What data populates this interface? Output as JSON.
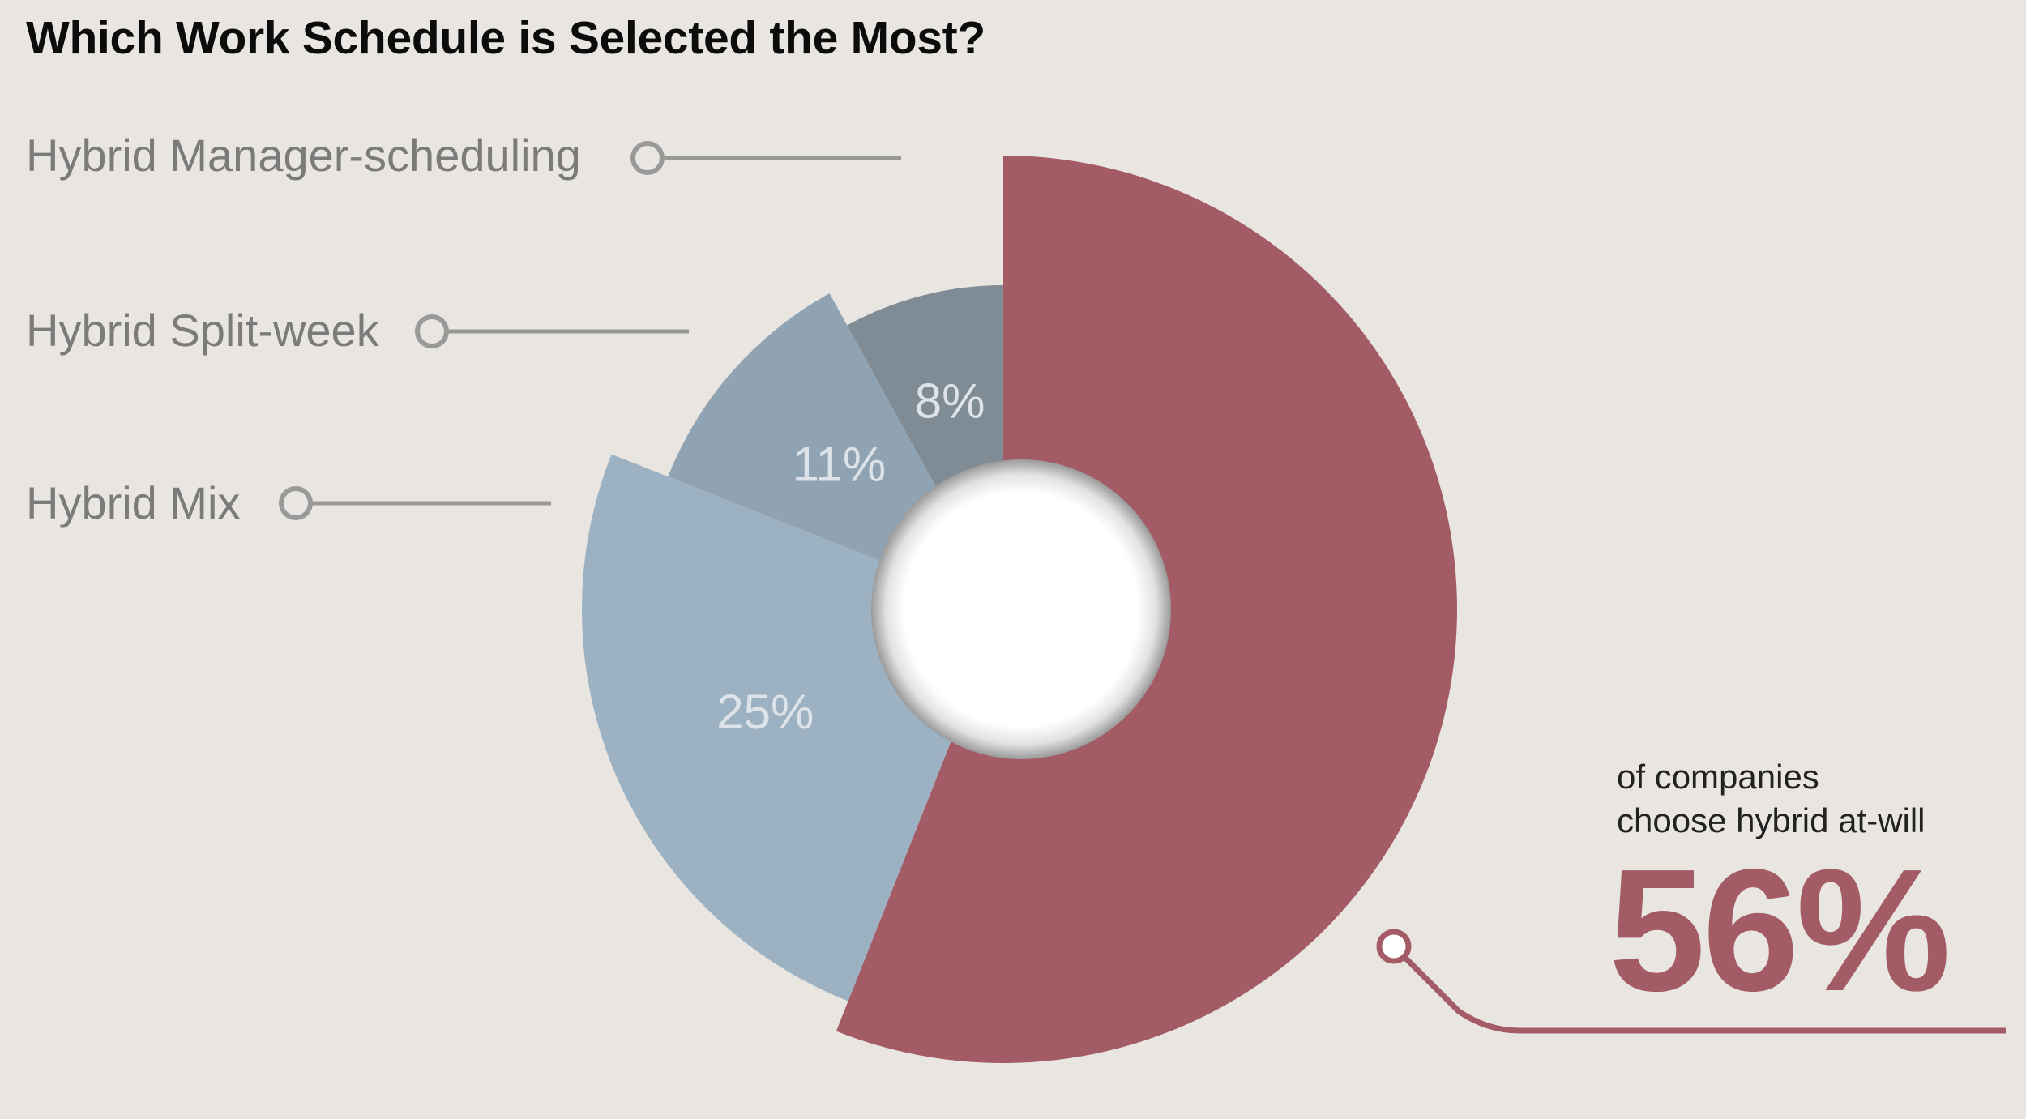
{
  "title": "Which Work Schedule is Selected the Most?",
  "colors": {
    "background": "#e9e6e1",
    "at_will": "#a35c66",
    "mix": "#9cb2c3",
    "split_week": "#8fa3b2",
    "manager_scheduling": "#7f8b95",
    "legend_line": "#999999"
  },
  "legend": [
    {
      "label": "Hybrid Manager-scheduling"
    },
    {
      "label": "Hybrid Split-week"
    },
    {
      "label": "Hybrid Mix"
    }
  ],
  "callout": {
    "line1": "of companies",
    "line2": "choose hybrid at-will",
    "value": "56%"
  },
  "chart_data": {
    "type": "pie",
    "title": "Which Work Schedule is Selected the Most?",
    "donut": true,
    "slices": [
      {
        "name": "Hybrid at-will",
        "value": 56,
        "label": "56%",
        "color": "#a35c66"
      },
      {
        "name": "Hybrid Mix",
        "value": 25,
        "label": "25%",
        "color": "#9cb2c3"
      },
      {
        "name": "Hybrid Split-week",
        "value": 11,
        "label": "11%",
        "color": "#8fa3b2"
      },
      {
        "name": "Hybrid Manager-scheduling",
        "value": 8,
        "label": "8%",
        "color": "#7f8b95"
      }
    ]
  }
}
